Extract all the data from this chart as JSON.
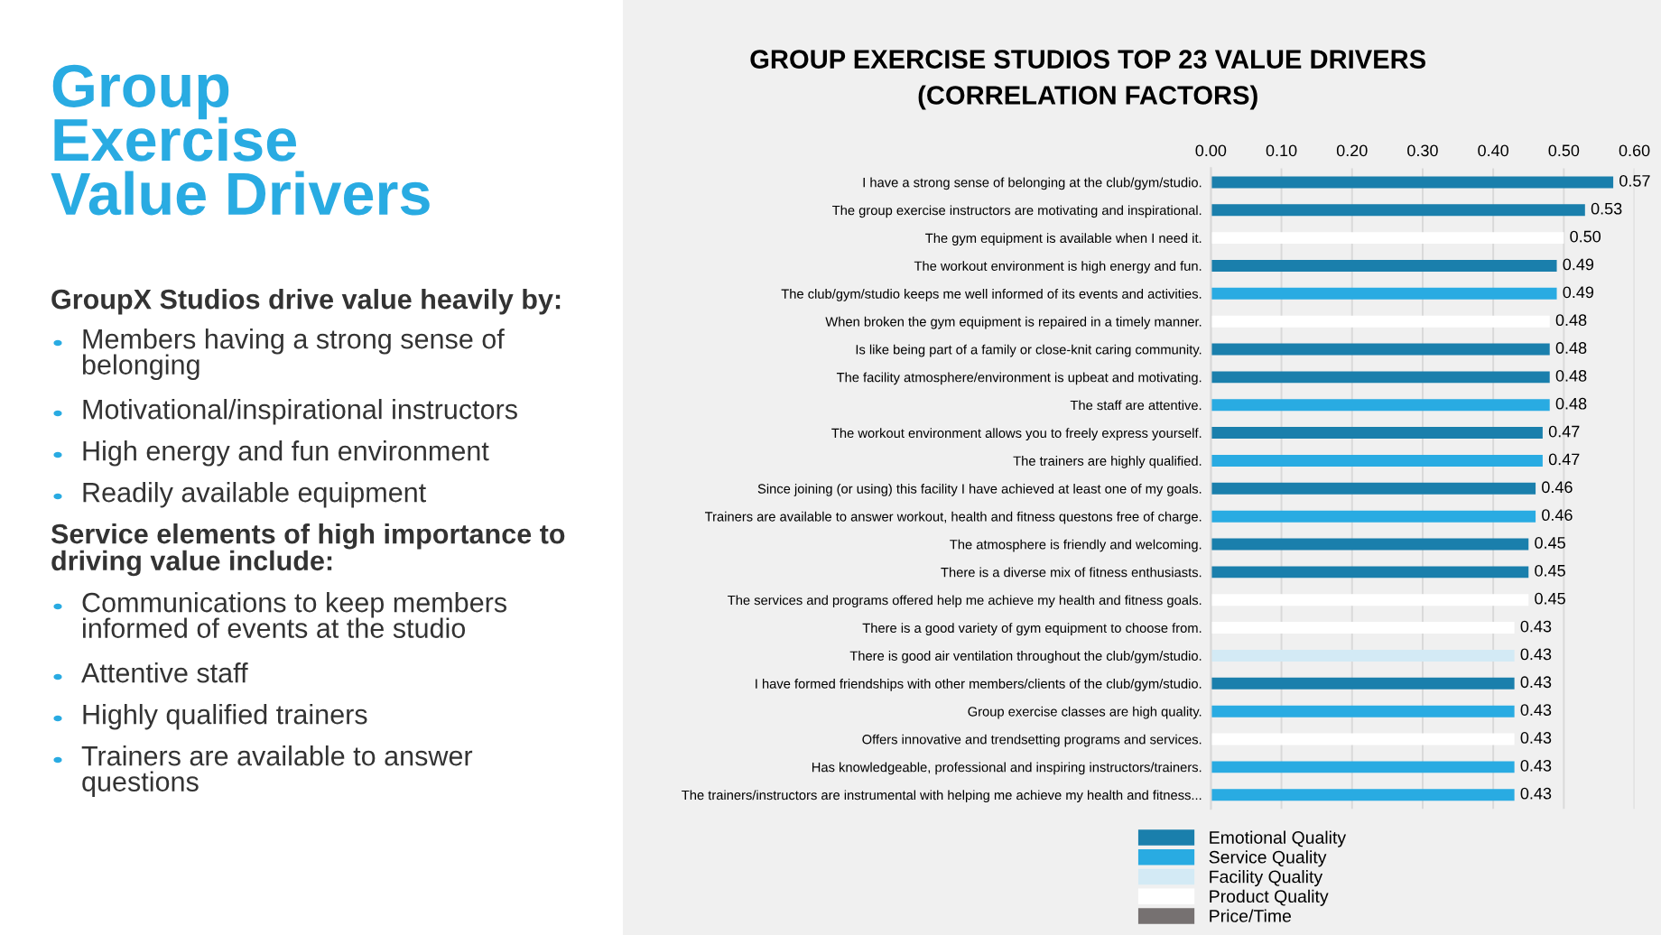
{
  "chart_data": {
    "type": "bar",
    "orientation": "horizontal",
    "title": "GROUP EXERCISE STUDIOS TOP 23 VALUE DRIVERS\n(CORRELATION FACTORS)",
    "categories": [
      "I have a strong sense of belonging at the club/gym/studio.",
      "The group exercise instructors are motivating and inspirational.",
      "The gym equipment is available when I need it.",
      "The workout environment is high energy and fun.",
      "The club/gym/studio keeps me well informed of its events and activities.",
      "When broken the gym equipment is repaired in a timely manner.",
      "Is like being part of a family or close-knit caring community.",
      "The facility atmosphere/environment is upbeat and motivating.",
      "The staff are attentive.",
      "The workout environment allows you to freely express yourself.",
      "The trainers are highly qualified.",
      "Since joining (or using) this facility I have achieved at least one of my goals.",
      "Trainers are available to answer workout, health and fitness questons free of charge.",
      "The atmosphere is friendly and welcoming.",
      "There is a diverse mix of fitness enthusiasts.",
      "The services and programs offered help me achieve my health and fitness goals.",
      "There is a good variety of gym equipment to choose from.",
      "There is good air ventilation throughout the club/gym/studio.",
      "I have formed friendships with other members/clients of the club/gym/studio.",
      "Group exercise classes are high quality.",
      "Offers innovative and trendsetting programs and services.",
      "Has knowledgeable, professional and inspiring instructors/trainers.",
      "The trainers/instructors are instrumental with helping me achieve my health and fitness..."
    ],
    "series": [
      {
        "name": "Emotional Quality",
        "color": "#1a7fac",
        "values": [
          0.57,
          0.53,
          null,
          0.49,
          null,
          null,
          0.48,
          0.48,
          null,
          0.47,
          null,
          0.46,
          null,
          0.45,
          0.45,
          null,
          null,
          null,
          0.43,
          null,
          null,
          null,
          null
        ],
        "value_labels": [
          "0.57",
          "0.53",
          null,
          "0.49",
          null,
          null,
          "0.48",
          "0.48",
          null,
          "0.47",
          null,
          "0.46",
          null,
          "0.45",
          "0.45",
          null,
          null,
          null,
          "0.43",
          null,
          null,
          null,
          null
        ]
      },
      {
        "name": "Service Quality",
        "color": "#29abe2",
        "values": [
          null,
          null,
          null,
          null,
          0.49,
          null,
          null,
          null,
          0.48,
          null,
          0.47,
          null,
          0.46,
          null,
          null,
          null,
          null,
          null,
          null,
          0.43,
          null,
          0.43,
          0.43
        ],
        "value_labels": [
          null,
          null,
          null,
          null,
          "0.49",
          null,
          null,
          null,
          "0.48",
          null,
          "0.47",
          null,
          "0.46",
          null,
          null,
          null,
          null,
          null,
          null,
          "0.43",
          null,
          "0.43",
          "0.43"
        ]
      },
      {
        "name": "Facility Quality",
        "color": "#d3eaf5",
        "values": [
          null,
          null,
          null,
          null,
          null,
          null,
          null,
          null,
          null,
          null,
          null,
          null,
          null,
          null,
          null,
          null,
          null,
          0.43,
          null,
          null,
          null,
          null,
          null
        ],
        "value_labels": [
          null,
          null,
          null,
          null,
          null,
          null,
          null,
          null,
          null,
          null,
          null,
          null,
          null,
          null,
          null,
          null,
          null,
          "0.43",
          null,
          null,
          null,
          null,
          null
        ]
      },
      {
        "name": "Product Quality",
        "color": "#ffffff",
        "values": [
          null,
          null,
          0.5,
          null,
          null,
          0.48,
          null,
          null,
          null,
          null,
          null,
          null,
          null,
          null,
          null,
          0.45,
          0.43,
          null,
          null,
          null,
          0.43,
          null,
          null
        ],
        "value_labels": [
          null,
          null,
          "0.50",
          null,
          null,
          "0.48",
          null,
          null,
          null,
          null,
          null,
          null,
          null,
          null,
          null,
          "0.45",
          "0.43",
          null,
          null,
          null,
          "0.43",
          null,
          null
        ]
      },
      {
        "name": "Price/Time",
        "color": "#767171",
        "values": [
          null,
          null,
          null,
          null,
          null,
          null,
          null,
          null,
          null,
          null,
          null,
          null,
          null,
          null,
          null,
          null,
          null,
          null,
          null,
          null,
          null,
          null,
          null
        ]
      }
    ],
    "xlim": [
      0,
      0.6
    ],
    "xticks": [
      {
        "value": 0,
        "label": "0.00"
      },
      {
        "value": 0.1,
        "label": "0.10"
      },
      {
        "value": 0.2,
        "label": "0.20"
      },
      {
        "value": 0.3,
        "label": "0.30"
      },
      {
        "value": 0.4,
        "label": "0.40"
      },
      {
        "value": 0.5,
        "label": "0.50"
      },
      {
        "value": 0.6,
        "label": "0.60"
      }
    ],
    "grid": "x",
    "legend": "bottom",
    "annotations": [
      "Group\nExercise\nValue Drivers",
      "GroupX Studios drive value heavily by:",
      "Members having a strong sense of\nbelonging",
      "Motivational/inspirational instructors",
      "High energy and fun environment",
      "Readily available equipment",
      "Service elements of high importance to\ndriving value include:",
      "Communications to keep members\ninformed of events at the studio",
      "Attentive staff",
      "Highly qualified trainers",
      "Trainers are available to answer\nquestions"
    ]
  }
}
